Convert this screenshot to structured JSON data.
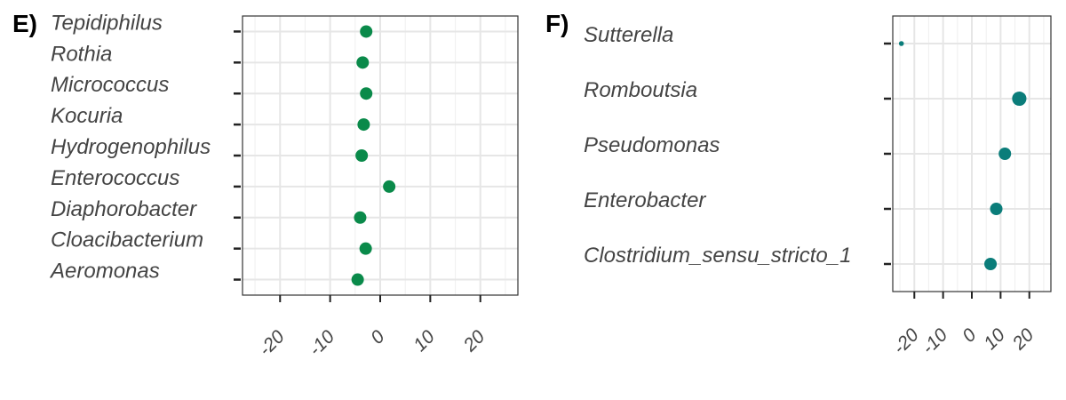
{
  "chart_data": [
    {
      "panel_label": "E)",
      "type": "scatter",
      "color": "#0a8a4a",
      "categories": [
        "Tepidiphilus",
        "Rothia",
        "Micrococcus",
        "Kocuria",
        "Hydrogenophilus",
        "Enterococcus",
        "Diaphorobacter",
        "Cloacibacterium",
        "Aeromonas"
      ],
      "values": [
        -2.8,
        -3.5,
        -2.8,
        -3.3,
        -3.7,
        1.8,
        -4.0,
        -2.9,
        -4.5
      ],
      "sizes": [
        1,
        1,
        1,
        1,
        1,
        1,
        1,
        1,
        1
      ],
      "xlim": [
        -27.5,
        27.5
      ],
      "xticks": [
        -20,
        -10,
        0,
        10,
        20
      ],
      "xtick_labels": [
        "-20",
        "-10",
        "0",
        "10",
        "20"
      ],
      "grid": true
    },
    {
      "panel_label": "F)",
      "type": "scatter",
      "color": "#0b7d7a",
      "categories": [
        "Sutterella",
        "Romboutsia",
        "Pseudomonas",
        "Enterobacter",
        "Clostridium_sensu_stricto_1"
      ],
      "values": [
        -24.5,
        16.5,
        11.5,
        8.5,
        6.5
      ],
      "sizes": [
        0.4,
        1.15,
        1.0,
        1.0,
        1.0
      ],
      "xlim": [
        -27.5,
        27.5
      ],
      "xticks": [
        -20,
        -10,
        0,
        10,
        20
      ],
      "xtick_labels": [
        "-20",
        "-10",
        "0",
        "10",
        "20"
      ],
      "grid": true
    }
  ]
}
